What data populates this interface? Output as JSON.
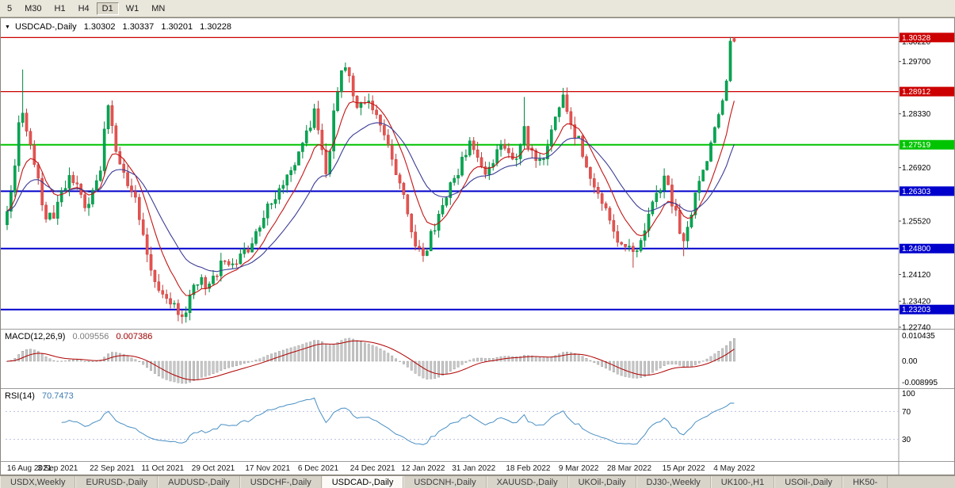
{
  "toolbar": {
    "timeframes": [
      {
        "label": "5",
        "active": false
      },
      {
        "label": "M30",
        "active": false
      },
      {
        "label": "H1",
        "active": false
      },
      {
        "label": "H4",
        "active": false
      },
      {
        "label": "D1",
        "active": true
      },
      {
        "label": "W1",
        "active": false
      },
      {
        "label": "MN",
        "active": false
      }
    ]
  },
  "chart": {
    "title": {
      "collapse_icon": "▼",
      "symbol": "USDCAD-,Daily",
      "open": "1.30302",
      "high": "1.30337",
      "low": "1.30201",
      "close": "1.30228"
    },
    "y_axis_ticks": [
      {
        "price": 1.3022,
        "label": "1.30220"
      },
      {
        "price": 1.297,
        "label": "1.29700"
      },
      {
        "price": 1.2833,
        "label": "1.28330"
      },
      {
        "price": 1.2692,
        "label": "1.26920"
      },
      {
        "price": 1.2552,
        "label": "1.25520"
      },
      {
        "price": 1.2412,
        "label": "1.24120"
      },
      {
        "price": 1.2342,
        "label": "1.23420"
      },
      {
        "price": 1.2274,
        "label": "1.22740"
      }
    ],
    "x_axis_dates": [
      "16 Aug 2021",
      "3 Sep 2021",
      "22 Sep 2021",
      "11 Oct 2021",
      "29 Oct 2021",
      "17 Nov 2021",
      "6 Dec 2021",
      "24 Dec 2021",
      "12 Jan 2022",
      "31 Jan 2022",
      "18 Feb 2022",
      "9 Mar 2022",
      "28 Mar 2022",
      "15 Apr 2022",
      "4 May 2022"
    ]
  },
  "indicators": {
    "macd": {
      "title": "MACD(12,26,9)",
      "value_main": "0.009556",
      "value_signal": "0.007386",
      "axis_labels": [
        "0.010435",
        "0.00",
        "-0.008995"
      ]
    },
    "rsi": {
      "title": "RSI(14)",
      "value": "70.7473",
      "levels": [
        70,
        30
      ],
      "axis_labels": [
        "100",
        "70",
        "30"
      ]
    }
  },
  "tabs": [
    {
      "label": "USDX,Weekly",
      "active": false
    },
    {
      "label": "EURUSD-,Daily",
      "active": false
    },
    {
      "label": "AUDUSD-,Daily",
      "active": false
    },
    {
      "label": "USDCHF-,Daily",
      "active": false
    },
    {
      "label": "USDCAD-,Daily",
      "active": true
    },
    {
      "label": "USDCNH-,Daily",
      "active": false
    },
    {
      "label": "XAUUSD-,Daily",
      "active": false
    },
    {
      "label": "UKOil-,Daily",
      "active": false
    },
    {
      "label": "DJ30-,Weekly",
      "active": false
    },
    {
      "label": "UK100-,H1",
      "active": false
    },
    {
      "label": "USOil-,Daily",
      "active": false
    },
    {
      "label": "HK50-",
      "active": false
    }
  ],
  "colors": {
    "bull_fill": "#00a651",
    "bull_stroke": "#00873f",
    "bear_fill": "#e8524f",
    "bear_stroke": "#bb3a38",
    "ma_fast": "#c41414",
    "ma_slow": "#3c3c96",
    "hline_red": "#cc0000",
    "hline_green": "#00c400",
    "hline_blue": "#0000cc",
    "macd_histogram": "#c9c9c9",
    "macd_histogram_edge": "#8f8f8f",
    "macd_signal": "#b00000",
    "rsi_line": "#4a90c4",
    "rsi_level": "#b9bfe0",
    "axis_text": "#000000",
    "date_text": "#1a1a1a"
  },
  "chart_data": {
    "type": "candlestick",
    "symbol": "USDCAD",
    "timeframe": "Daily",
    "date_range": [
      "16 Aug 2021",
      "4 May 2022"
    ],
    "num_candles": 188,
    "visible_price_range": [
      1.2274,
      1.3073
    ],
    "last_candle": {
      "open": 1.30302,
      "high": 1.30337,
      "low": 1.30201,
      "close": 1.30228
    },
    "horizontal_lines": [
      {
        "price": 1.30328,
        "label": "1.30328",
        "color": "#cc0000",
        "width": 1.2
      },
      {
        "price": 1.28912,
        "label": "1.28912",
        "color": "#cc0000",
        "width": 1.2
      },
      {
        "price": 1.27519,
        "label": "1.27519",
        "color": "#00c400",
        "width": 2
      },
      {
        "price": 1.26303,
        "label": "1.26303",
        "color": "#0000cc",
        "width": 2
      },
      {
        "price": 1.248,
        "label": "1.24800",
        "color": "#0000cc",
        "width": 2
      },
      {
        "price": 1.23203,
        "label": "1.23203",
        "color": "#0000cc",
        "width": 2
      }
    ],
    "moving_averages": [
      {
        "period": 9,
        "color": "#c41414"
      },
      {
        "period": 21,
        "color": "#3c3c96"
      }
    ],
    "indicator_values": {
      "macd": 0.009556,
      "macd_signal": 0.007386,
      "rsi": 70.7473
    },
    "price_anchors": [
      [
        0,
        1.257
      ],
      [
        1,
        1.2615
      ],
      [
        2,
        1.268
      ],
      [
        3,
        1.2815
      ],
      [
        4,
        1.285
      ],
      [
        5,
        1.2798
      ],
      [
        6,
        1.2755
      ],
      [
        7,
        1.27
      ],
      [
        8,
        1.2652
      ],
      [
        10,
        1.2568
      ],
      [
        12,
        1.2548
      ],
      [
        14,
        1.2622
      ],
      [
        16,
        1.2663
      ],
      [
        18,
        1.2638
      ],
      [
        20,
        1.2592
      ],
      [
        22,
        1.2628
      ],
      [
        24,
        1.269
      ],
      [
        25,
        1.2795
      ],
      [
        26,
        1.2838
      ],
      [
        27,
        1.279
      ],
      [
        29,
        1.2702
      ],
      [
        31,
        1.2652
      ],
      [
        33,
        1.26
      ],
      [
        35,
        1.2502
      ],
      [
        37,
        1.2424
      ],
      [
        39,
        1.2382
      ],
      [
        41,
        1.2352
      ],
      [
        43,
        1.233
      ],
      [
        45,
        1.2302
      ],
      [
        46,
        1.2322
      ],
      [
        48,
        1.2368
      ],
      [
        50,
        1.24
      ],
      [
        52,
        1.2382
      ],
      [
        54,
        1.242
      ],
      [
        56,
        1.2455
      ],
      [
        58,
        1.2442
      ],
      [
        60,
        1.2465
      ],
      [
        62,
        1.2482
      ],
      [
        64,
        1.253
      ],
      [
        66,
        1.2562
      ],
      [
        68,
        1.26
      ],
      [
        70,
        1.264
      ],
      [
        72,
        1.2665
      ],
      [
        74,
        1.27
      ],
      [
        76,
        1.275
      ],
      [
        78,
        1.2806
      ],
      [
        79,
        1.284
      ],
      [
        80,
        1.2788
      ],
      [
        81,
        1.2732
      ],
      [
        82,
        1.2692
      ],
      [
        83,
        1.275
      ],
      [
        84,
        1.284
      ],
      [
        85,
        1.29
      ],
      [
        86,
        1.2938
      ],
      [
        87,
        1.2958
      ],
      [
        88,
        1.292
      ],
      [
        89,
        1.288
      ],
      [
        91,
        1.2852
      ],
      [
        93,
        1.2878
      ],
      [
        95,
        1.283
      ],
      [
        97,
        1.278
      ],
      [
        99,
        1.2728
      ],
      [
        101,
        1.265
      ],
      [
        103,
        1.256
      ],
      [
        105,
        1.2492
      ],
      [
        107,
        1.2456
      ],
      [
        109,
        1.251
      ],
      [
        111,
        1.257
      ],
      [
        113,
        1.263
      ],
      [
        115,
        1.2665
      ],
      [
        117,
        1.2705
      ],
      [
        119,
        1.2768
      ],
      [
        121,
        1.2722
      ],
      [
        123,
        1.2685
      ],
      [
        125,
        1.2715
      ],
      [
        127,
        1.2762
      ],
      [
        129,
        1.2726
      ],
      [
        131,
        1.2705
      ],
      [
        133,
        1.2788
      ],
      [
        134,
        1.2745
      ],
      [
        136,
        1.27
      ],
      [
        138,
        1.273
      ],
      [
        140,
        1.279
      ],
      [
        142,
        1.2848
      ],
      [
        143,
        1.2868
      ],
      [
        145,
        1.2806
      ],
      [
        147,
        1.276
      ],
      [
        149,
        1.2705
      ],
      [
        151,
        1.2645
      ],
      [
        153,
        1.2596
      ],
      [
        155,
        1.2546
      ],
      [
        157,
        1.2506
      ],
      [
        159,
        1.248
      ],
      [
        161,
        1.2464
      ],
      [
        163,
        1.2505
      ],
      [
        165,
        1.256
      ],
      [
        167,
        1.2618
      ],
      [
        169,
        1.2654
      ],
      [
        171,
        1.2606
      ],
      [
        173,
        1.2535
      ],
      [
        174,
        1.2492
      ],
      [
        175,
        1.2522
      ],
      [
        176,
        1.2576
      ],
      [
        178,
        1.265
      ],
      [
        180,
        1.2712
      ],
      [
        182,
        1.28
      ],
      [
        184,
        1.2872
      ],
      [
        185,
        1.2916
      ],
      [
        186,
        1.3025
      ],
      [
        187,
        1.30228
      ]
    ],
    "wick_overrides": {
      "4": {
        "high": 1.2949
      },
      "45": {
        "low": 1.2288
      },
      "87": {
        "high": 1.2964
      },
      "107": {
        "low": 1.245
      },
      "133": {
        "high": 1.2877
      },
      "143": {
        "high": 1.2901
      },
      "161": {
        "low": 1.243
      },
      "174": {
        "low": 1.246
      },
      "186": {
        "high": 1.3034
      }
    }
  }
}
